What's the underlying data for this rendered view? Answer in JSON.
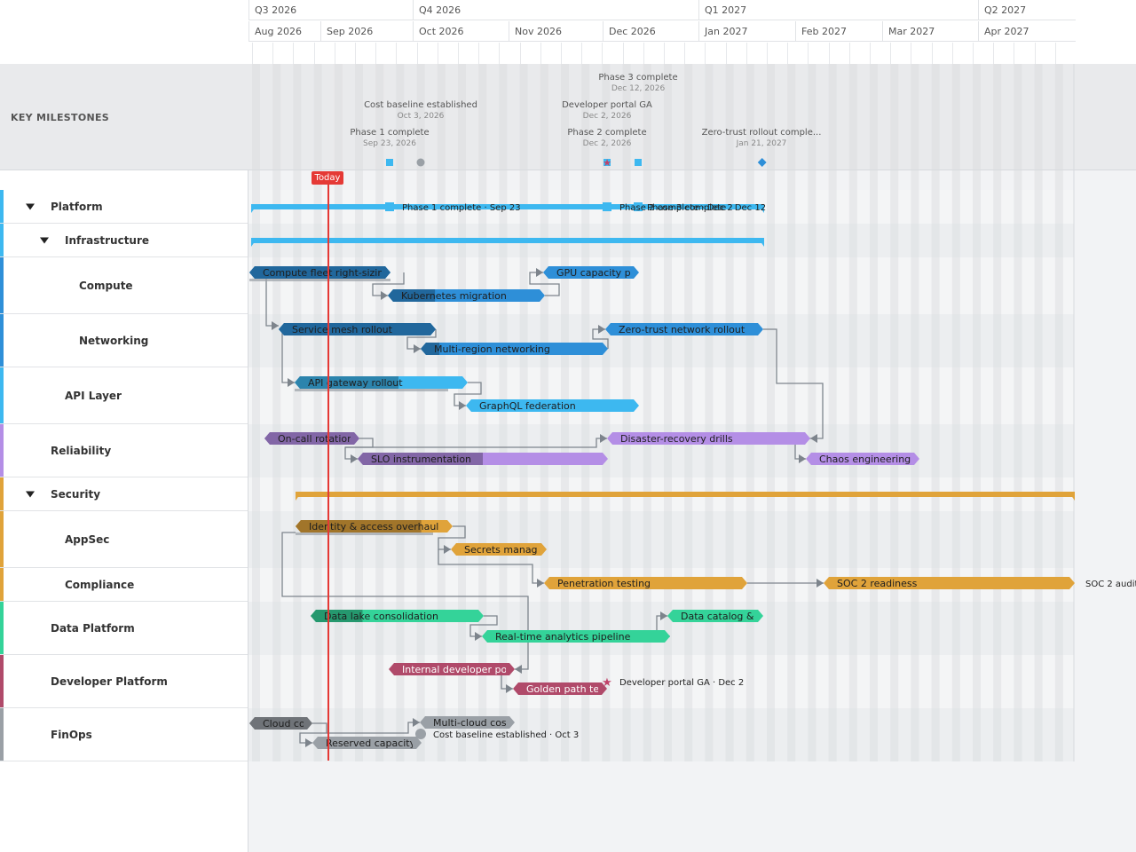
{
  "header": {
    "quarters": [
      "Q3 2026",
      "Q4 2026",
      "Q1 2027",
      "Q2 2027"
    ],
    "months": [
      "Aug 2026",
      "Sep 2026",
      "Oct 2026",
      "Nov 2026",
      "Dec 2026",
      "Jan 2027",
      "Feb 2027",
      "Mar 2027",
      "Apr 2027"
    ]
  },
  "milestones_band": {
    "label": "KEY MILESTONES",
    "items": [
      {
        "name": "Phase 3 complete",
        "date": "Dec 12, 2026",
        "shape": "square",
        "color": "#3db8f0"
      },
      {
        "name": "Cost baseline established",
        "date": "Oct 3, 2026",
        "shape": "circle",
        "color": "#9aa0a6"
      },
      {
        "name": "Developer portal GA",
        "date": "Dec 2, 2026",
        "shape": "star",
        "color": "#c0436a"
      },
      {
        "name": "Phase 1 complete",
        "date": "Sep 23, 2026",
        "shape": "square",
        "color": "#3db8f0"
      },
      {
        "name": "Phase 2 complete",
        "date": "Dec 2, 2026",
        "shape": "square",
        "color": "#3db8f0"
      },
      {
        "name": "Zero-trust rollout comple...",
        "date": "Jan 21, 2027",
        "shape": "diamond",
        "color": "#2e8fd8"
      }
    ]
  },
  "today_label": "Today",
  "rows": [
    {
      "label": "Platform",
      "color": "#3db8f0",
      "expanded": true
    },
    {
      "label": "Infrastructure",
      "color": "#3db8f0",
      "expanded": true
    },
    {
      "label": "Compute",
      "color": "#2e8fd8"
    },
    {
      "label": "Networking",
      "color": "#2e8fd8"
    },
    {
      "label": "API Layer",
      "color": "#3db8f0"
    },
    {
      "label": "Reliability",
      "color": "#b48ee6"
    },
    {
      "label": "Security",
      "color": "#e0a33a",
      "expanded": true
    },
    {
      "label": "AppSec",
      "color": "#e0a33a"
    },
    {
      "label": "Compliance",
      "color": "#e0a33a"
    },
    {
      "label": "Data Platform",
      "color": "#34d399"
    },
    {
      "label": "Developer Platform",
      "color": "#b04a6a"
    },
    {
      "label": "FinOps",
      "color": "#9aa0a6"
    }
  ],
  "bars": [
    {
      "label": "Compute fleet right-sizing",
      "color": "#2e8fd8",
      "progress": 1.0
    },
    {
      "label": "GPU capacity planning",
      "color": "#2e8fd8",
      "progress": 0.0
    },
    {
      "label": "Kubernetes migration",
      "color": "#2e8fd8",
      "progress": 0.3
    },
    {
      "label": "Service mesh rollout",
      "color": "#2e8fd8",
      "progress": 1.0
    },
    {
      "label": "Zero-trust network rollout",
      "color": "#2e8fd8",
      "progress": 0.0
    },
    {
      "label": "Multi-region networking",
      "color": "#2e8fd8",
      "progress": 0.1
    },
    {
      "label": "API gateway rollout",
      "color": "#3db8f0",
      "progress": 0.6
    },
    {
      "label": "GraphQL federation",
      "color": "#3db8f0",
      "progress": 0.0
    },
    {
      "label": "On-call rotation",
      "color": "#b48ee6",
      "progress": 1.0
    },
    {
      "label": "Disaster-recovery drills",
      "color": "#b48ee6",
      "progress": 0.0
    },
    {
      "label": "SLO instrumentation",
      "color": "#b48ee6",
      "progress": 0.5
    },
    {
      "label": "Chaos engineering program",
      "color": "#b48ee6",
      "progress": 0.0
    },
    {
      "label": "Identity & access overhaul",
      "color": "#e0a33a",
      "progress": 0.8
    },
    {
      "label": "Secrets management",
      "color": "#e0a33a",
      "progress": 0.0
    },
    {
      "label": "Penetration testing",
      "color": "#e0a33a",
      "progress": 0.0
    },
    {
      "label": "SOC 2 readiness",
      "color": "#e0a33a",
      "progress": 0.0
    },
    {
      "label": "Data lake consolidation",
      "color": "#34d399",
      "progress": 0.3
    },
    {
      "label": "Data catalog & lineage",
      "color": "#34d399",
      "progress": 0.0
    },
    {
      "label": "Real-time analytics pipeline",
      "color": "#34d399",
      "progress": 0.0
    },
    {
      "label": "Internal developer portal",
      "color": "#b04a6a",
      "progress": 0.0
    },
    {
      "label": "Golden path templates",
      "color": "#b04a6a",
      "progress": 0.0
    },
    {
      "label": "Cloud cost visibility",
      "color": "#9aa0a6",
      "progress": 1.0
    },
    {
      "label": "Multi-cloud cost",
      "color": "#9aa0a6",
      "progress": 0.0
    },
    {
      "label": "Reserved capacity plan",
      "color": "#9aa0a6",
      "progress": 0.0
    }
  ],
  "inline_milestones": [
    {
      "label": "Phase 1 complete",
      "date": "Sep 23"
    },
    {
      "label": "Phase 2 complete",
      "date": "Dec 2"
    },
    {
      "label": "Phase 3 complete",
      "date": "Dec 12"
    },
    {
      "label": "SOC 2 audit",
      "date": ""
    },
    {
      "label": "Developer portal GA",
      "date": "Dec 2"
    },
    {
      "label": "Cost baseline established",
      "date": "Oct 3"
    }
  ]
}
